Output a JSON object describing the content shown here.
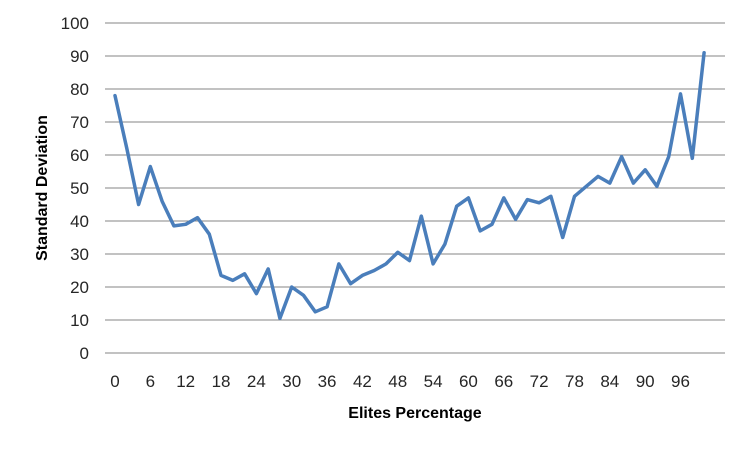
{
  "chart_data": {
    "type": "line",
    "title": "",
    "xlabel": "Elites Percentage",
    "ylabel": "Standard Deviation",
    "ylim": [
      0,
      100
    ],
    "yticks": [
      0,
      10,
      20,
      30,
      40,
      50,
      60,
      70,
      80,
      90,
      100
    ],
    "xticks": [
      0,
      6,
      12,
      18,
      24,
      30,
      36,
      42,
      48,
      54,
      60,
      66,
      72,
      78,
      84,
      90,
      96
    ],
    "grid": true,
    "legend": "none",
    "line_color": "#4a7ebb",
    "series": [
      {
        "x": [
          0,
          2,
          4,
          6,
          8,
          10,
          12,
          14,
          16,
          18,
          20,
          22,
          24,
          26,
          28,
          30,
          32,
          34,
          36,
          38,
          40,
          42,
          44,
          46,
          48,
          50,
          52,
          54,
          56,
          58,
          60,
          62,
          64,
          66,
          68,
          70,
          72,
          74,
          76,
          78,
          80,
          82,
          84,
          86,
          88,
          90,
          92,
          94,
          96,
          98,
          100
        ],
        "values": [
          78,
          62,
          45,
          56.5,
          46,
          38.5,
          39,
          41,
          36,
          23.5,
          22,
          24,
          18,
          25.5,
          10.5,
          20,
          17.5,
          12.5,
          14,
          27,
          21,
          23.5,
          25,
          27,
          30.5,
          28,
          41.5,
          27,
          33,
          44.5,
          47,
          37,
          39,
          47,
          40.5,
          46.5,
          45.5,
          47.5,
          35,
          47.5,
          50.5,
          53.5,
          51.5,
          59.5,
          51.5,
          55.5,
          50.5,
          59.5,
          78.5,
          59,
          91
        ]
      }
    ]
  }
}
